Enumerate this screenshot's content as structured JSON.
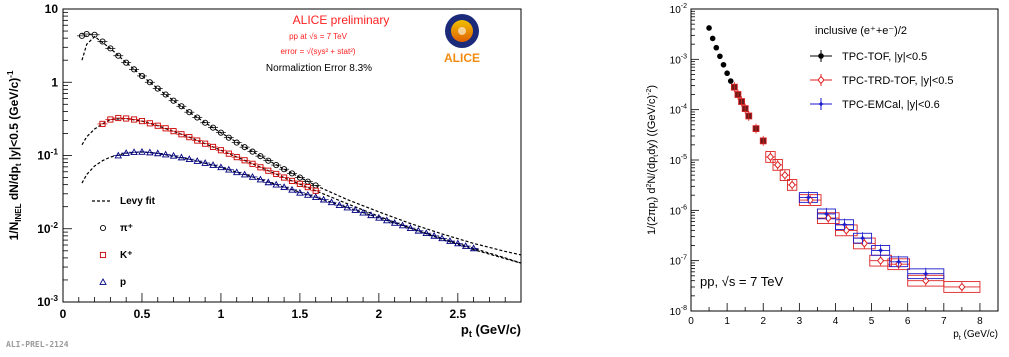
{
  "chart_data": [
    {
      "type": "scatter",
      "title": "ALICE preliminary",
      "annotations": {
        "system": "pp at √s = 7 TeV",
        "error": "error = √(sys² + stat²)",
        "norm": "Normaliztion Error 8.3%",
        "logo": "ALICE",
        "footer": "ALI-PREL-2124"
      },
      "xlabel": "p_t (GeV/c)",
      "ylabel": "1/N_INEL dN/dp_t |y|<0.5 (GeV/c)^-1",
      "x_range": [
        0,
        2.9
      ],
      "y_range_log": [
        0.001,
        10
      ],
      "y_scale": "log",
      "x_ticks": [
        "0",
        "0.5",
        "1",
        "1.5",
        "2",
        "2.5"
      ],
      "y_ticks": [
        "10^-3",
        "10^-2",
        "10^-1",
        "1",
        "10"
      ],
      "legend": [
        "Levy fit",
        "π⁺",
        "K⁺",
        "p"
      ],
      "legend_position": "bottom-left",
      "series": [
        {
          "name": "π⁺",
          "marker": "circle",
          "color": "#000000",
          "points": [
            [
              0.12,
              4.3
            ],
            [
              0.15,
              4.55
            ],
            [
              0.2,
              4.45
            ],
            [
              0.25,
              3.6
            ],
            [
              0.3,
              2.9
            ],
            [
              0.35,
              2.3
            ],
            [
              0.4,
              1.85
            ],
            [
              0.45,
              1.5
            ],
            [
              0.5,
              1.22
            ],
            [
              0.55,
              1.0
            ],
            [
              0.6,
              0.82
            ],
            [
              0.65,
              0.68
            ],
            [
              0.7,
              0.56
            ],
            [
              0.75,
              0.47
            ],
            [
              0.8,
              0.39
            ],
            [
              0.85,
              0.33
            ],
            [
              0.9,
              0.28
            ],
            [
              0.95,
              0.24
            ],
            [
              1.0,
              0.205
            ],
            [
              1.05,
              0.175
            ],
            [
              1.1,
              0.15
            ],
            [
              1.15,
              0.13
            ],
            [
              1.2,
              0.113
            ],
            [
              1.25,
              0.098
            ],
            [
              1.3,
              0.085
            ],
            [
              1.35,
              0.074
            ],
            [
              1.4,
              0.065
            ],
            [
              1.45,
              0.057
            ],
            [
              1.5,
              0.05
            ],
            [
              1.55,
              0.044
            ],
            [
              1.6,
              0.039
            ]
          ]
        },
        {
          "name": "K⁺",
          "marker": "square",
          "color": "#cc0000",
          "points": [
            [
              0.25,
              0.27
            ],
            [
              0.3,
              0.31
            ],
            [
              0.35,
              0.325
            ],
            [
              0.4,
              0.32
            ],
            [
              0.45,
              0.31
            ],
            [
              0.5,
              0.295
            ],
            [
              0.55,
              0.275
            ],
            [
              0.6,
              0.255
            ],
            [
              0.65,
              0.235
            ],
            [
              0.7,
              0.215
            ],
            [
              0.75,
              0.195
            ],
            [
              0.8,
              0.178
            ],
            [
              0.85,
              0.16
            ],
            [
              0.9,
              0.145
            ],
            [
              0.95,
              0.131
            ],
            [
              1.0,
              0.118
            ],
            [
              1.05,
              0.106
            ],
            [
              1.1,
              0.095
            ],
            [
              1.15,
              0.086
            ],
            [
              1.2,
              0.077
            ],
            [
              1.25,
              0.069
            ],
            [
              1.3,
              0.062
            ],
            [
              1.35,
              0.056
            ],
            [
              1.4,
              0.05
            ],
            [
              1.45,
              0.045
            ],
            [
              1.5,
              0.041
            ],
            [
              1.55,
              0.037
            ],
            [
              1.6,
              0.033
            ]
          ]
        },
        {
          "name": "p",
          "marker": "triangle",
          "color": "#000080",
          "points": [
            [
              0.35,
              0.1
            ],
            [
              0.4,
              0.108
            ],
            [
              0.45,
              0.111
            ],
            [
              0.5,
              0.112
            ],
            [
              0.55,
              0.11
            ],
            [
              0.6,
              0.107
            ],
            [
              0.65,
              0.103
            ],
            [
              0.7,
              0.099
            ],
            [
              0.75,
              0.094
            ],
            [
              0.8,
              0.089
            ],
            [
              0.85,
              0.084
            ],
            [
              0.9,
              0.079
            ],
            [
              0.95,
              0.074
            ],
            [
              1.0,
              0.069
            ],
            [
              1.05,
              0.064
            ],
            [
              1.1,
              0.059
            ],
            [
              1.15,
              0.055
            ],
            [
              1.2,
              0.051
            ],
            [
              1.25,
              0.047
            ],
            [
              1.3,
              0.043
            ],
            [
              1.35,
              0.04
            ],
            [
              1.4,
              0.037
            ],
            [
              1.45,
              0.034
            ],
            [
              1.5,
              0.031
            ],
            [
              1.55,
              0.029
            ],
            [
              1.6,
              0.027
            ],
            [
              1.65,
              0.025
            ],
            [
              1.7,
              0.023
            ],
            [
              1.75,
              0.021
            ],
            [
              1.8,
              0.0195
            ],
            [
              1.85,
              0.018
            ],
            [
              1.9,
              0.0166
            ],
            [
              1.95,
              0.0153
            ],
            [
              2.0,
              0.0141
            ],
            [
              2.05,
              0.013
            ],
            [
              2.1,
              0.012
            ],
            [
              2.15,
              0.0111
            ],
            [
              2.2,
              0.0102
            ],
            [
              2.25,
              0.0094
            ],
            [
              2.3,
              0.0087
            ],
            [
              2.35,
              0.008
            ],
            [
              2.4,
              0.0074
            ],
            [
              2.45,
              0.0068
            ],
            [
              2.5,
              0.0063
            ],
            [
              2.55,
              0.0058
            ],
            [
              2.6,
              0.0054
            ]
          ]
        }
      ],
      "fits": [
        {
          "name": "Levy fit (π⁺)",
          "points": [
            [
              0.12,
              2.0
            ],
            [
              0.15,
              3.3
            ],
            [
              0.2,
              4.2
            ],
            [
              0.3,
              2.9
            ],
            [
              0.4,
              1.85
            ],
            [
              0.5,
              1.22
            ],
            [
              0.6,
              0.82
            ],
            [
              0.7,
              0.56
            ],
            [
              0.8,
              0.39
            ],
            [
              0.9,
              0.28
            ],
            [
              1.0,
              0.205
            ],
            [
              1.2,
              0.113
            ],
            [
              1.4,
              0.065
            ],
            [
              1.6,
              0.039
            ],
            [
              1.8,
              0.025
            ],
            [
              2.0,
              0.017
            ],
            [
              2.2,
              0.0118
            ],
            [
              2.4,
              0.0085
            ],
            [
              2.6,
              0.0063
            ],
            [
              2.8,
              0.0049
            ],
            [
              2.9,
              0.0044
            ]
          ]
        },
        {
          "name": "Levy fit (K⁺)",
          "points": [
            [
              0.12,
              0.14
            ],
            [
              0.15,
              0.18
            ],
            [
              0.2,
              0.23
            ],
            [
              0.25,
              0.27
            ],
            [
              0.3,
              0.31
            ],
            [
              0.4,
              0.32
            ],
            [
              0.5,
              0.295
            ],
            [
              0.6,
              0.255
            ],
            [
              0.8,
              0.178
            ],
            [
              1.0,
              0.118
            ],
            [
              1.2,
              0.077
            ],
            [
              1.4,
              0.05
            ],
            [
              1.6,
              0.033
            ],
            [
              1.8,
              0.022
            ],
            [
              2.0,
              0.0148
            ],
            [
              2.2,
              0.0102
            ],
            [
              2.4,
              0.0072
            ],
            [
              2.6,
              0.0052
            ],
            [
              2.8,
              0.0039
            ],
            [
              2.9,
              0.0034
            ]
          ]
        },
        {
          "name": "Levy fit (p)",
          "points": [
            [
              0.12,
              0.042
            ],
            [
              0.15,
              0.055
            ],
            [
              0.2,
              0.072
            ],
            [
              0.25,
              0.085
            ],
            [
              0.3,
              0.095
            ],
            [
              0.4,
              0.108
            ],
            [
              0.5,
              0.112
            ],
            [
              0.6,
              0.107
            ],
            [
              0.8,
              0.089
            ],
            [
              1.0,
              0.069
            ],
            [
              1.2,
              0.051
            ],
            [
              1.4,
              0.037
            ],
            [
              1.6,
              0.027
            ],
            [
              1.8,
              0.0195
            ],
            [
              2.0,
              0.0141
            ],
            [
              2.2,
              0.0102
            ],
            [
              2.4,
              0.0074
            ],
            [
              2.6,
              0.0054
            ],
            [
              2.8,
              0.004
            ],
            [
              2.9,
              0.0034
            ]
          ]
        }
      ]
    },
    {
      "type": "scatter",
      "title": "inclusive (e⁺+e⁻)/2",
      "annotations": {
        "system": "pp, √s = 7 TeV"
      },
      "xlabel": "p_t (GeV/c)",
      "ylabel": "1/(2πp_t) d²N/(dp_t dy) ((GeV/c)^-2)",
      "x_range": [
        0,
        8.5
      ],
      "y_range_log": [
        1e-08,
        0.01
      ],
      "y_scale": "log",
      "x_ticks": [
        "0",
        "1",
        "2",
        "3",
        "4",
        "5",
        "6",
        "7",
        "8"
      ],
      "y_ticks": [
        "10^-8",
        "10^-7",
        "10^-6",
        "10^-5",
        "10^-4",
        "10^-3",
        "10^-2"
      ],
      "legend": [
        "TPC-TOF, |y|<0.5",
        "TPC-TRD-TOF, |y|<0.5",
        "TPC-EMCal, |y|<0.6"
      ],
      "legend_position": "top-right",
      "series": [
        {
          "name": "TPC-TOF, |y|<0.5",
          "marker": "dot",
          "color": "#000000",
          "points": [
            [
              0.5,
              0.0042
            ],
            [
              0.6,
              0.0026
            ],
            [
              0.7,
              0.0017
            ],
            [
              0.8,
              0.00115
            ],
            [
              0.9,
              0.00078
            ],
            [
              1.0,
              0.00053
            ],
            [
              1.1,
              0.00037
            ]
          ]
        },
        {
          "name": "TPC-TRD-TOF, |y|<0.5",
          "marker": "open-diamond",
          "color": "#dd2222",
          "points": [
            [
              1.2,
              0.00028
            ],
            [
              1.3,
              0.0002
            ],
            [
              1.4,
              0.000145
            ],
            [
              1.5,
              0.000105
            ],
            [
              1.6,
              7.5e-05
            ],
            [
              1.8,
              4.2e-05
            ],
            [
              2.0,
              2.4e-05
            ],
            [
              2.2,
              1.15e-05
            ],
            [
              2.4,
              8e-06
            ],
            [
              2.6,
              5e-06
            ],
            [
              2.8,
              3.2e-06
            ],
            [
              3.3,
              1.6e-06
            ],
            [
              3.8,
              7e-07
            ],
            [
              4.3,
              4e-07
            ],
            [
              4.8,
              2.2e-07
            ],
            [
              5.25,
              1e-07
            ],
            [
              5.75,
              8.5e-08
            ],
            [
              6.5,
              4e-08
            ],
            [
              7.5,
              3e-08
            ]
          ]
        },
        {
          "name": "TPC-EMCal, |y|<0.6",
          "marker": "star",
          "color": "#1a1acc",
          "points": [
            [
              3.25,
              1.8e-06
            ],
            [
              3.75,
              8.5e-07
            ],
            [
              4.25,
              5.2e-07
            ],
            [
              4.75,
              2.8e-07
            ],
            [
              5.25,
              1.6e-07
            ],
            [
              5.75,
              9.5e-08
            ],
            [
              6.5,
              5.5e-08
            ]
          ]
        }
      ]
    }
  ]
}
